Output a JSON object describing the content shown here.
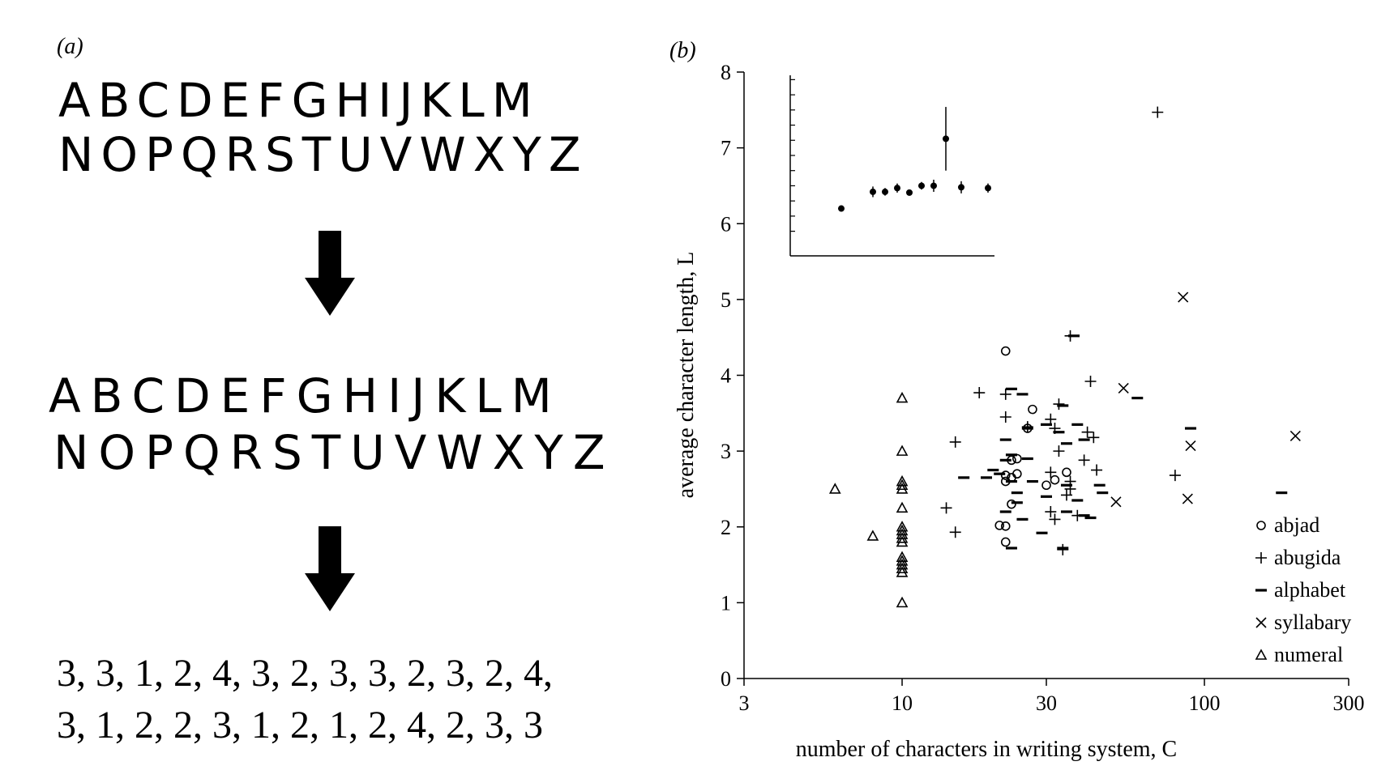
{
  "panel_a": {
    "label": "(a)",
    "letters_row1": "ABCDEFGHIJKLM",
    "letters_row2": "NOPQRSTUVWXYZ",
    "broken_row1": "ABCDEFGHIJKLM",
    "broken_row2": "NOPQRSTUVWXYZ",
    "counts_row1": "3, 3, 1, 2, 4, 3, 2, 3, 3, 2, 3, 2, 4,",
    "counts_row2": "3, 1, 2, 2, 3, 1, 2, 1, 2, 4, 2, 3, 3"
  },
  "chart_data": {
    "panel_label": "(b)",
    "type": "scatter",
    "xscale": "log",
    "xlabel": "number of characters in writing system, C",
    "ylabel": "average character length, L",
    "xlim": [
      3,
      300
    ],
    "ylim": [
      0,
      8
    ],
    "xticks": [
      3,
      10,
      30,
      100,
      300
    ],
    "yticks": [
      0,
      1,
      2,
      3,
      4,
      5,
      6,
      7,
      8
    ],
    "legend_position": "bottom-right",
    "series": [
      {
        "name": "abjad",
        "marker": "circle",
        "points": [
          [
            22,
            4.32
          ],
          [
            23,
            2.88
          ],
          [
            27,
            3.55
          ],
          [
            26,
            3.3
          ],
          [
            24,
            2.9
          ],
          [
            22,
            2.68
          ],
          [
            23,
            2.65
          ],
          [
            22,
            2.6
          ],
          [
            24,
            2.7
          ],
          [
            21,
            2.02
          ],
          [
            22,
            2.01
          ],
          [
            22,
            1.8
          ],
          [
            23,
            2.3
          ],
          [
            30,
            2.55
          ],
          [
            32,
            2.62
          ],
          [
            35,
            2.72
          ]
        ]
      },
      {
        "name": "abugida",
        "marker": "plus",
        "points": [
          [
            70,
            7.47
          ],
          [
            36,
            4.52
          ],
          [
            42,
            3.92
          ],
          [
            18,
            3.77
          ],
          [
            22,
            3.75
          ],
          [
            33,
            3.62
          ],
          [
            22,
            3.45
          ],
          [
            26,
            3.32
          ],
          [
            31,
            3.42
          ],
          [
            32,
            3.3
          ],
          [
            41,
            3.25
          ],
          [
            43,
            3.18
          ],
          [
            15,
            3.12
          ],
          [
            33,
            3.0
          ],
          [
            40,
            2.88
          ],
          [
            44,
            2.75
          ],
          [
            31,
            2.72
          ],
          [
            36,
            2.6
          ],
          [
            36,
            2.5
          ],
          [
            35,
            2.42
          ],
          [
            14,
            2.25
          ],
          [
            31,
            2.2
          ],
          [
            32,
            2.1
          ],
          [
            38,
            2.15
          ],
          [
            15,
            1.93
          ],
          [
            34,
            1.7
          ],
          [
            80,
            2.68
          ]
        ]
      },
      {
        "name": "alphabet",
        "marker": "dash",
        "points": [
          [
            37,
            4.52
          ],
          [
            23,
            3.82
          ],
          [
            25,
            3.75
          ],
          [
            60,
            3.7
          ],
          [
            22,
            3.15
          ],
          [
            34,
            3.6
          ],
          [
            26,
            3.3
          ],
          [
            30,
            3.35
          ],
          [
            38,
            3.35
          ],
          [
            33,
            3.25
          ],
          [
            40,
            3.15
          ],
          [
            35,
            3.1
          ],
          [
            23,
            2.95
          ],
          [
            26,
            2.9
          ],
          [
            22,
            2.88
          ],
          [
            20,
            2.75
          ],
          [
            16,
            2.65
          ],
          [
            19,
            2.65
          ],
          [
            21,
            2.7
          ],
          [
            23,
            2.6
          ],
          [
            27,
            2.6
          ],
          [
            35,
            2.55
          ],
          [
            46,
            2.45
          ],
          [
            45,
            2.55
          ],
          [
            24,
            2.45
          ],
          [
            30,
            2.4
          ],
          [
            38,
            2.35
          ],
          [
            22,
            2.2
          ],
          [
            24,
            2.32
          ],
          [
            25,
            2.1
          ],
          [
            35,
            2.2
          ],
          [
            40,
            2.15
          ],
          [
            42,
            2.12
          ],
          [
            29,
            1.92
          ],
          [
            23,
            1.72
          ],
          [
            34,
            1.72
          ],
          [
            90,
            3.3
          ],
          [
            180,
            2.45
          ]
        ]
      },
      {
        "name": "syllabary",
        "marker": "cross",
        "points": [
          [
            85,
            5.03
          ],
          [
            54,
            3.83
          ],
          [
            90,
            3.07
          ],
          [
            200,
            3.2
          ],
          [
            88,
            2.37
          ],
          [
            51,
            2.33
          ]
        ]
      },
      {
        "name": "numeral",
        "marker": "triangle",
        "points": [
          [
            10,
            3.7
          ],
          [
            10,
            3.0
          ],
          [
            10,
            2.6
          ],
          [
            10,
            2.55
          ],
          [
            10,
            2.5
          ],
          [
            10,
            2.25
          ],
          [
            10,
            2.0
          ],
          [
            10,
            1.95
          ],
          [
            10,
            1.9
          ],
          [
            10,
            1.85
          ],
          [
            10,
            1.8
          ],
          [
            10,
            1.6
          ],
          [
            10,
            1.55
          ],
          [
            10,
            1.5
          ],
          [
            10,
            1.45
          ],
          [
            10,
            1.4
          ],
          [
            10,
            1.0
          ],
          [
            6,
            2.5
          ],
          [
            8,
            1.88
          ]
        ]
      }
    ],
    "inset": {
      "yticks": [
        6,
        7,
        8
      ],
      "points": [
        {
          "y": 6.2,
          "err": 0.04
        },
        {
          "y": 6.42,
          "err": 0.07
        },
        {
          "y": 6.42,
          "err": 0.05
        },
        {
          "y": 6.47,
          "err": 0.06
        },
        {
          "y": 6.41,
          "err": 0.04
        },
        {
          "y": 6.5,
          "err": 0.05
        },
        {
          "y": 6.5,
          "err": 0.08
        },
        {
          "y": 7.12,
          "err": 0.42
        },
        {
          "y": 6.48,
          "err": 0.08
        },
        {
          "y": 6.47,
          "err": 0.06
        }
      ]
    }
  }
}
